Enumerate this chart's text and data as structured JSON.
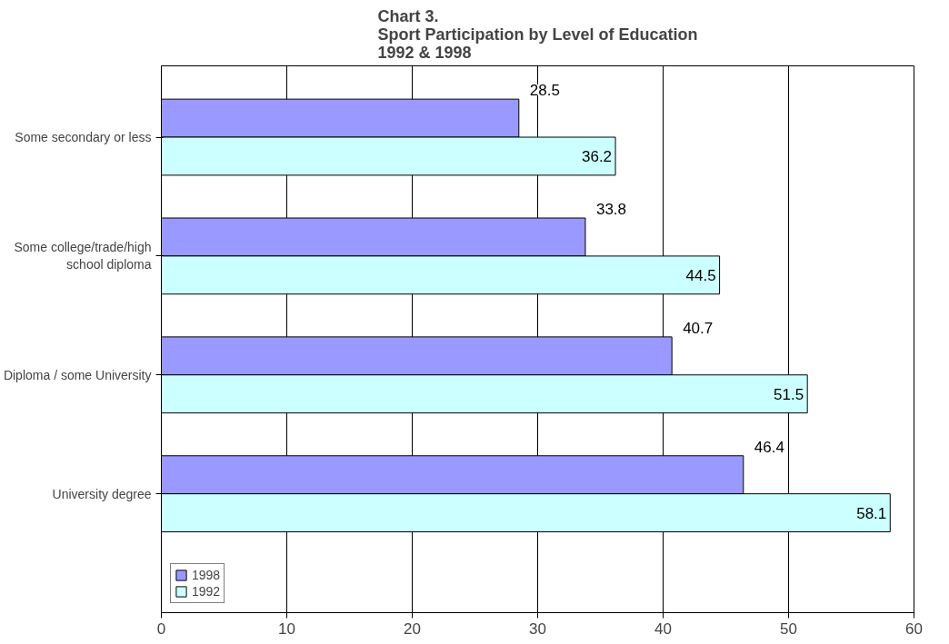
{
  "chart_data": {
    "type": "bar",
    "orientation": "horizontal",
    "title": "Chart 3.\nSport Participation by Level of Education\n1992 & 1998",
    "categories": [
      "Some secondary or less",
      "Some college/trade/high school diploma",
      "Diploma / some University",
      "University degree"
    ],
    "series": [
      {
        "name": "1998",
        "color": "#9999ff",
        "values": [
          28.5,
          33.8,
          40.7,
          46.4
        ]
      },
      {
        "name": "1992",
        "color": "#ccffff",
        "values": [
          36.2,
          44.5,
          51.5,
          58.1
        ]
      }
    ],
    "xlim": [
      0,
      60
    ],
    "xticks": [
      0,
      10,
      20,
      30,
      40,
      50,
      60
    ],
    "grid": "x",
    "legend": "bottom left",
    "data_labels": true
  }
}
